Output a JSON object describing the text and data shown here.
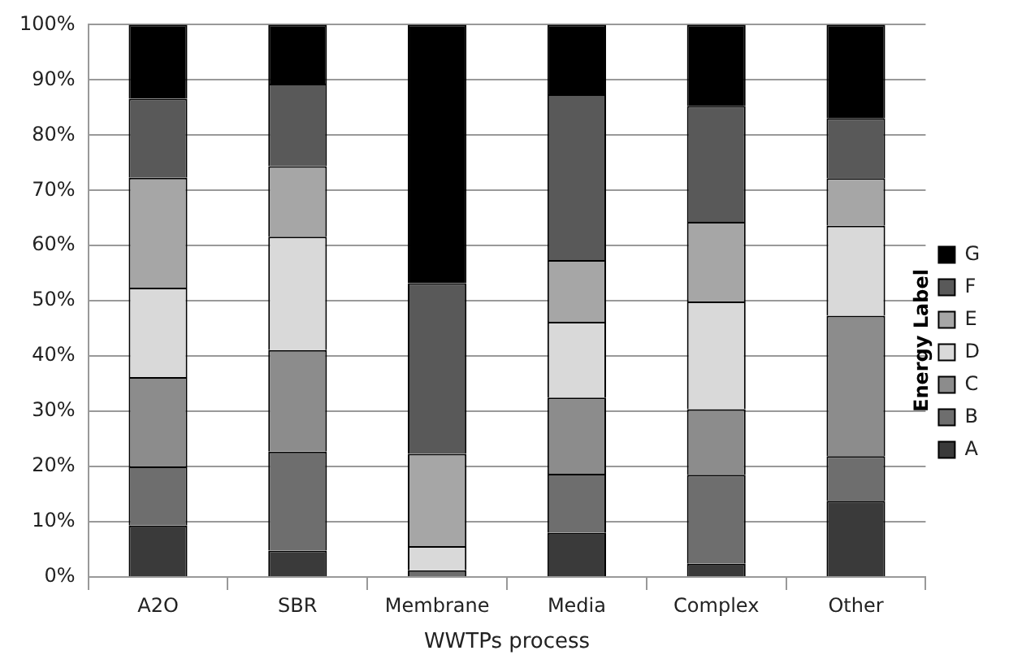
{
  "chart_data": {
    "type": "bar",
    "stacked": true,
    "xlabel": "WWTPs process",
    "legend_title": "Energy Label",
    "legend": "right",
    "grid": "y",
    "categories": [
      "A2O",
      "SBR",
      "Membrane",
      "Media",
      "Complex",
      "Other"
    ],
    "ylim": [
      0,
      100
    ],
    "yticks": [
      {
        "value": 0,
        "label": "0%"
      },
      {
        "value": 10,
        "label": "10%"
      },
      {
        "value": 20,
        "label": "20%"
      },
      {
        "value": 30,
        "label": "30%"
      },
      {
        "value": 40,
        "label": "40%"
      },
      {
        "value": 50,
        "label": "50%"
      },
      {
        "value": 60,
        "label": "60%"
      },
      {
        "value": 70,
        "label": "70%"
      },
      {
        "value": 80,
        "label": "80%"
      },
      {
        "value": 90,
        "label": "90%"
      },
      {
        "value": 100,
        "label": "100%"
      }
    ],
    "series": [
      {
        "name": "A",
        "color": "#3a3a3a",
        "values": [
          9.3,
          4.8,
          0,
          8.0,
          2.4,
          13.8
        ]
      },
      {
        "name": "B",
        "color": "#6e6e6e",
        "values": [
          10.7,
          17.9,
          1.2,
          10.7,
          16.1,
          8.1
        ]
      },
      {
        "name": "C",
        "color": "#8c8c8c",
        "values": [
          16.2,
          18.4,
          0,
          13.8,
          11.9,
          25.4
        ]
      },
      {
        "name": "D",
        "color": "#d9d9d9",
        "values": [
          16.2,
          20.5,
          4.4,
          13.7,
          19.5,
          16.3
        ]
      },
      {
        "name": "E",
        "color": "#a6a6a6",
        "values": [
          19.9,
          12.8,
          16.7,
          11.2,
          14.4,
          8.6
        ]
      },
      {
        "name": "F",
        "color": "#595959",
        "values": [
          14.3,
          14.9,
          30.9,
          30.0,
          21.0,
          10.9
        ]
      },
      {
        "name": "G",
        "color": "#000000",
        "values": [
          13.4,
          10.7,
          46.8,
          12.6,
          14.7,
          16.9
        ]
      }
    ]
  }
}
